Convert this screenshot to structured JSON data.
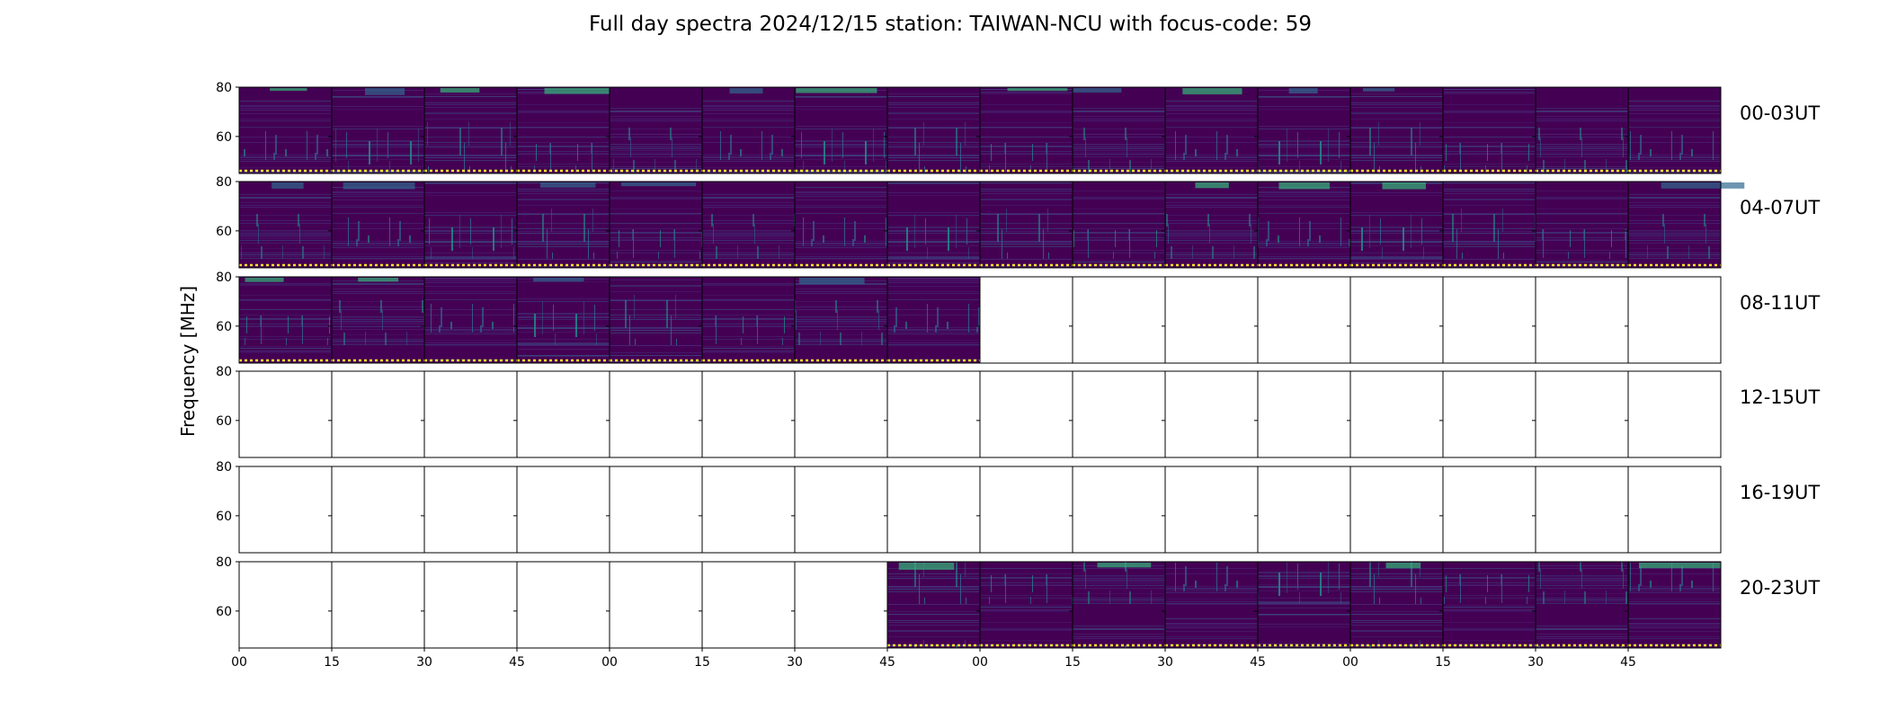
{
  "chart_data": {
    "type": "heatmap",
    "title": "Full day spectra 2024/12/15 station: TAIWAN-NCU with focus-code: 59",
    "ylabel": "Frequency [MHz]",
    "xlabel": "",
    "ylim": [
      45,
      80
    ],
    "y_ticks": [
      60,
      80
    ],
    "x_tick_labels": [
      "00",
      "15",
      "30",
      "45",
      "00",
      "15",
      "30",
      "45",
      "00",
      "15",
      "30",
      "45",
      "00",
      "15",
      "30",
      "45"
    ],
    "columns_per_row": 16,
    "minutes_per_panel": 15,
    "colormap": {
      "low": "#440154",
      "mid": "#31688e",
      "high": "#35b779",
      "peak": "#fde725"
    },
    "rows": [
      {
        "label": "00-03UT",
        "filled": [
          1,
          1,
          1,
          1,
          1,
          1,
          1,
          1,
          1,
          1,
          1,
          1,
          1,
          1,
          1,
          1
        ]
      },
      {
        "label": "04-07UT",
        "filled": [
          1,
          1,
          1,
          1,
          1,
          1,
          1,
          1,
          1,
          1,
          1,
          1,
          1,
          1,
          1,
          1
        ]
      },
      {
        "label": "08-11UT",
        "filled": [
          1,
          1,
          1,
          1,
          1,
          1,
          1,
          1,
          0,
          0,
          0,
          0,
          0,
          0,
          0,
          0
        ]
      },
      {
        "label": "12-15UT",
        "filled": [
          0,
          0,
          0,
          0,
          0,
          0,
          0,
          0,
          0,
          0,
          0,
          0,
          0,
          0,
          0,
          0
        ]
      },
      {
        "label": "16-19UT",
        "filled": [
          0,
          0,
          0,
          0,
          0,
          0,
          0,
          0,
          0,
          0,
          0,
          0,
          0,
          0,
          0,
          0
        ]
      },
      {
        "label": "20-23UT",
        "filled": [
          0,
          0,
          0,
          0,
          0,
          0,
          0,
          1,
          1,
          1,
          1,
          1,
          1,
          1,
          1,
          1
        ]
      }
    ]
  }
}
